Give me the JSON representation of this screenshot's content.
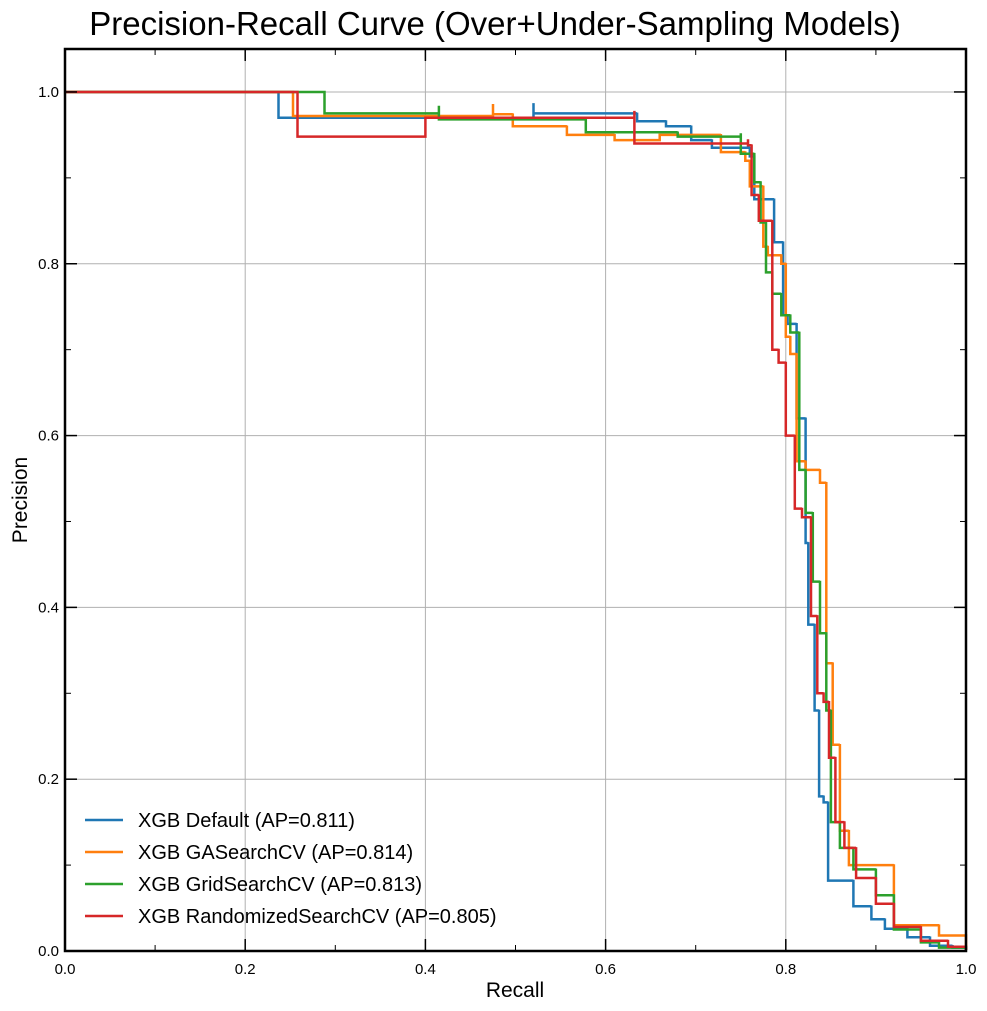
{
  "chart_data": {
    "type": "line",
    "title": "Precision-Recall Curve (Over+Under-Sampling Models)",
    "xlabel": "Recall",
    "ylabel": "Precision",
    "xlim": [
      0,
      1
    ],
    "ylim": [
      0,
      1.05
    ],
    "xticks": [
      "0.0",
      "0.2",
      "0.4",
      "0.6",
      "0.8",
      "1.0"
    ],
    "yticks": [
      "0.0",
      "0.2",
      "0.4",
      "0.6",
      "0.8",
      "1.0"
    ],
    "grid": true,
    "legend_position": "lower-left",
    "step": "post",
    "series": [
      {
        "name": "XGB Default (AP=0.811)",
        "color": "#1f77b4",
        "x": [
          0,
          0.237,
          0.237,
          0.52,
          0.52,
          0.635,
          0.635,
          0.667,
          0.667,
          0.695,
          0.695,
          0.718,
          0.718,
          0.76,
          0.76,
          0.765,
          0.765,
          0.787,
          0.787,
          0.797,
          0.797,
          0.802,
          0.802,
          0.812,
          0.812,
          0.822,
          0.822,
          0.825,
          0.825,
          0.832,
          0.832,
          0.837,
          0.837,
          0.842,
          0.842,
          0.847,
          0.847,
          0.875,
          0.875,
          0.895,
          0.895,
          0.91,
          0.91,
          0.935,
          0.935,
          0.96,
          0.96,
          0.985,
          0.985,
          1.0
        ],
        "y": [
          1.0,
          1.0,
          0.97,
          0.987,
          0.975,
          0.976,
          0.966,
          0.967,
          0.96,
          0.961,
          0.944,
          0.945,
          0.935,
          0.936,
          0.925,
          0.926,
          0.875,
          0.876,
          0.825,
          0.826,
          0.74,
          0.741,
          0.73,
          0.731,
          0.62,
          0.621,
          0.475,
          0.476,
          0.38,
          0.381,
          0.28,
          0.281,
          0.18,
          0.181,
          0.173,
          0.174,
          0.082,
          0.083,
          0.052,
          0.053,
          0.037,
          0.038,
          0.026,
          0.027,
          0.016,
          0.017,
          0.006,
          0.007,
          0.004,
          0.001
        ]
      },
      {
        "name": "XGB GASearchCV (AP=0.814)",
        "color": "#ff7f0e",
        "x": [
          0,
          0.253,
          0.253,
          0.475,
          0.475,
          0.497,
          0.497,
          0.557,
          0.557,
          0.61,
          0.61,
          0.66,
          0.66,
          0.728,
          0.728,
          0.755,
          0.755,
          0.76,
          0.76,
          0.775,
          0.775,
          0.78,
          0.78,
          0.795,
          0.795,
          0.8,
          0.8,
          0.805,
          0.805,
          0.812,
          0.812,
          0.822,
          0.822,
          0.838,
          0.838,
          0.845,
          0.845,
          0.852,
          0.852,
          0.86,
          0.86,
          0.87,
          0.87,
          0.92,
          0.92,
          0.97,
          0.97,
          1.0
        ],
        "y": [
          1.0,
          1.0,
          0.972,
          0.986,
          0.974,
          0.975,
          0.96,
          0.961,
          0.95,
          0.951,
          0.944,
          0.945,
          0.95,
          0.951,
          0.93,
          0.931,
          0.92,
          0.921,
          0.89,
          0.891,
          0.82,
          0.821,
          0.81,
          0.811,
          0.8,
          0.801,
          0.715,
          0.716,
          0.695,
          0.696,
          0.57,
          0.571,
          0.56,
          0.561,
          0.545,
          0.546,
          0.335,
          0.336,
          0.24,
          0.241,
          0.14,
          0.141,
          0.1,
          0.101,
          0.03,
          0.031,
          0.018,
          0.002
        ]
      },
      {
        "name": "XGB GridSearchCV (AP=0.813)",
        "color": "#2ca02c",
        "x": [
          0,
          0.288,
          0.288,
          0.415,
          0.415,
          0.578,
          0.578,
          0.68,
          0.68,
          0.75,
          0.75,
          0.765,
          0.765,
          0.772,
          0.772,
          0.778,
          0.778,
          0.785,
          0.785,
          0.795,
          0.795,
          0.805,
          0.805,
          0.815,
          0.815,
          0.822,
          0.822,
          0.83,
          0.83,
          0.838,
          0.838,
          0.845,
          0.845,
          0.85,
          0.85,
          0.86,
          0.86,
          0.875,
          0.875,
          0.9,
          0.9,
          0.92,
          0.92,
          0.95,
          0.95,
          0.97,
          0.97,
          1.0
        ],
        "y": [
          1.0,
          1.0,
          0.975,
          0.984,
          0.968,
          0.969,
          0.953,
          0.954,
          0.948,
          0.952,
          0.928,
          0.929,
          0.895,
          0.896,
          0.848,
          0.849,
          0.79,
          0.791,
          0.765,
          0.766,
          0.74,
          0.741,
          0.72,
          0.721,
          0.56,
          0.561,
          0.51,
          0.511,
          0.43,
          0.431,
          0.37,
          0.371,
          0.28,
          0.281,
          0.15,
          0.151,
          0.12,
          0.121,
          0.095,
          0.096,
          0.065,
          0.066,
          0.025,
          0.026,
          0.01,
          0.011,
          0.004,
          0.001
        ]
      },
      {
        "name": "XGB RandomizedSearchCV (AP=0.805)",
        "color": "#d62728",
        "x": [
          0,
          0.258,
          0.258,
          0.4,
          0.4,
          0.632,
          0.632,
          0.758,
          0.758,
          0.762,
          0.762,
          0.77,
          0.77,
          0.785,
          0.785,
          0.792,
          0.792,
          0.8,
          0.8,
          0.81,
          0.81,
          0.818,
          0.818,
          0.828,
          0.828,
          0.835,
          0.835,
          0.842,
          0.842,
          0.848,
          0.848,
          0.855,
          0.855,
          0.865,
          0.865,
          0.878,
          0.878,
          0.9,
          0.9,
          0.92,
          0.92,
          0.95,
          0.95,
          0.98,
          0.98,
          1.0
        ],
        "y": [
          1.0,
          1.0,
          0.948,
          0.97,
          0.97,
          0.978,
          0.94,
          0.945,
          0.938,
          0.939,
          0.88,
          0.881,
          0.85,
          0.851,
          0.7,
          0.701,
          0.685,
          0.686,
          0.6,
          0.601,
          0.515,
          0.516,
          0.505,
          0.506,
          0.39,
          0.391,
          0.3,
          0.301,
          0.29,
          0.291,
          0.225,
          0.226,
          0.15,
          0.151,
          0.12,
          0.121,
          0.085,
          0.086,
          0.055,
          0.056,
          0.028,
          0.029,
          0.012,
          0.013,
          0.005,
          0.001
        ]
      }
    ]
  }
}
